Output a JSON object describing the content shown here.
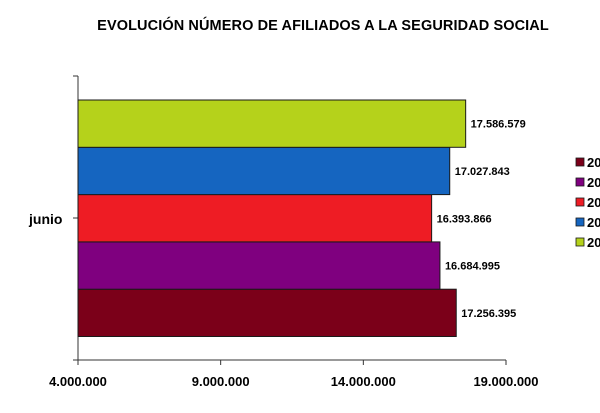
{
  "chart_data": {
    "type": "bar",
    "orientation": "horizontal",
    "title": "EVOLUCIÓN NÚMERO DE AFILIADOS A LA SEGURIDAD SOCIAL",
    "categories": [
      "junio"
    ],
    "series": [
      {
        "legend_label": "20",
        "color": "#7b0019",
        "values": [
          17256395
        ],
        "data_label": "17.256.395"
      },
      {
        "legend_label": "20",
        "color": "#7f007f",
        "values": [
          16684995
        ],
        "data_label": "16.684.995"
      },
      {
        "legend_label": "20",
        "color": "#ee1c24",
        "values": [
          16393866
        ],
        "data_label": "16.393.866"
      },
      {
        "legend_label": "20",
        "color": "#1565c0",
        "values": [
          17027843
        ],
        "data_label": "17.027.843"
      },
      {
        "legend_label": "20",
        "color": "#b5d21b",
        "values": [
          17586579
        ],
        "data_label": "17.586.579"
      }
    ],
    "xlim": [
      4000000,
      19000000
    ],
    "xticks": [
      4000000,
      9000000,
      14000000,
      19000000
    ],
    "xtick_labels": [
      "4.000.000",
      "9.000.000",
      "14.000.000",
      "19.000.000"
    ],
    "grid": false,
    "legend_position": "right"
  }
}
